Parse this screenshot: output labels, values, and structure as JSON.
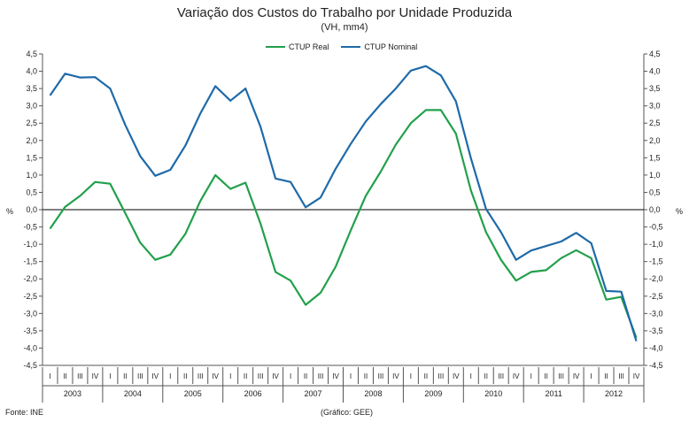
{
  "header": {
    "title": "Variação dos Custos do Trabalho por Unidade Produzida",
    "subtitle": "(VH, mm4)"
  },
  "footer": {
    "source": "Fonte: INE",
    "note": "(Gráfico: GEE)"
  },
  "colors": {
    "real": "#22a04b",
    "nominal": "#1f6aa8",
    "axis": "#555555",
    "zero": "#000000"
  },
  "chart_data": {
    "type": "line",
    "title": "Variação dos Custos do Trabalho por Unidade Produzida",
    "subtitle": "(VH, mm4)",
    "ylabel": "%",
    "ylim": [
      -4.5,
      4.5
    ],
    "ystep": 0.5,
    "ytick_labels": [
      "-4,5",
      "-4,0",
      "-3,5",
      "-3,0",
      "-2,5",
      "-2,0",
      "-1,5",
      "-1,0",
      "-0,5",
      "0,0",
      "0,5",
      "1,0",
      "1,5",
      "2,0",
      "2,5",
      "3,0",
      "3,5",
      "4,0",
      "4,5"
    ],
    "quarter_labels": [
      "I",
      "II",
      "III",
      "IV"
    ],
    "years": [
      "2003",
      "2004",
      "2005",
      "2006",
      "2007",
      "2008",
      "2009",
      "2010",
      "2011",
      "2012"
    ],
    "legend_position": "top-center",
    "series": [
      {
        "name": "CTUP Real",
        "values": [
          -0.55,
          0.08,
          0.4,
          0.8,
          0.75,
          -0.1,
          -0.95,
          -1.45,
          -1.3,
          -0.7,
          0.25,
          1.0,
          0.6,
          0.78,
          -0.4,
          -1.8,
          -2.05,
          -2.75,
          -2.4,
          -1.65,
          -0.6,
          0.4,
          1.1,
          1.88,
          2.5,
          2.88,
          2.88,
          2.2,
          0.55,
          -0.65,
          -1.45,
          -2.05,
          -1.8,
          -1.75,
          -1.4,
          -1.17,
          -1.4,
          -2.6,
          -2.52,
          -3.7
        ]
      },
      {
        "name": "CTUP Nominal",
        "values": [
          3.3,
          3.93,
          3.82,
          3.83,
          3.5,
          2.45,
          1.55,
          0.98,
          1.15,
          1.85,
          2.78,
          3.57,
          3.15,
          3.5,
          2.4,
          0.9,
          0.8,
          0.07,
          0.35,
          1.18,
          1.9,
          2.55,
          3.05,
          3.5,
          4.02,
          4.15,
          3.88,
          3.13,
          1.48,
          0.02,
          -0.65,
          -1.45,
          -1.18,
          -1.05,
          -0.92,
          -0.67,
          -0.97,
          -2.35,
          -2.37,
          -3.8
        ]
      }
    ]
  }
}
